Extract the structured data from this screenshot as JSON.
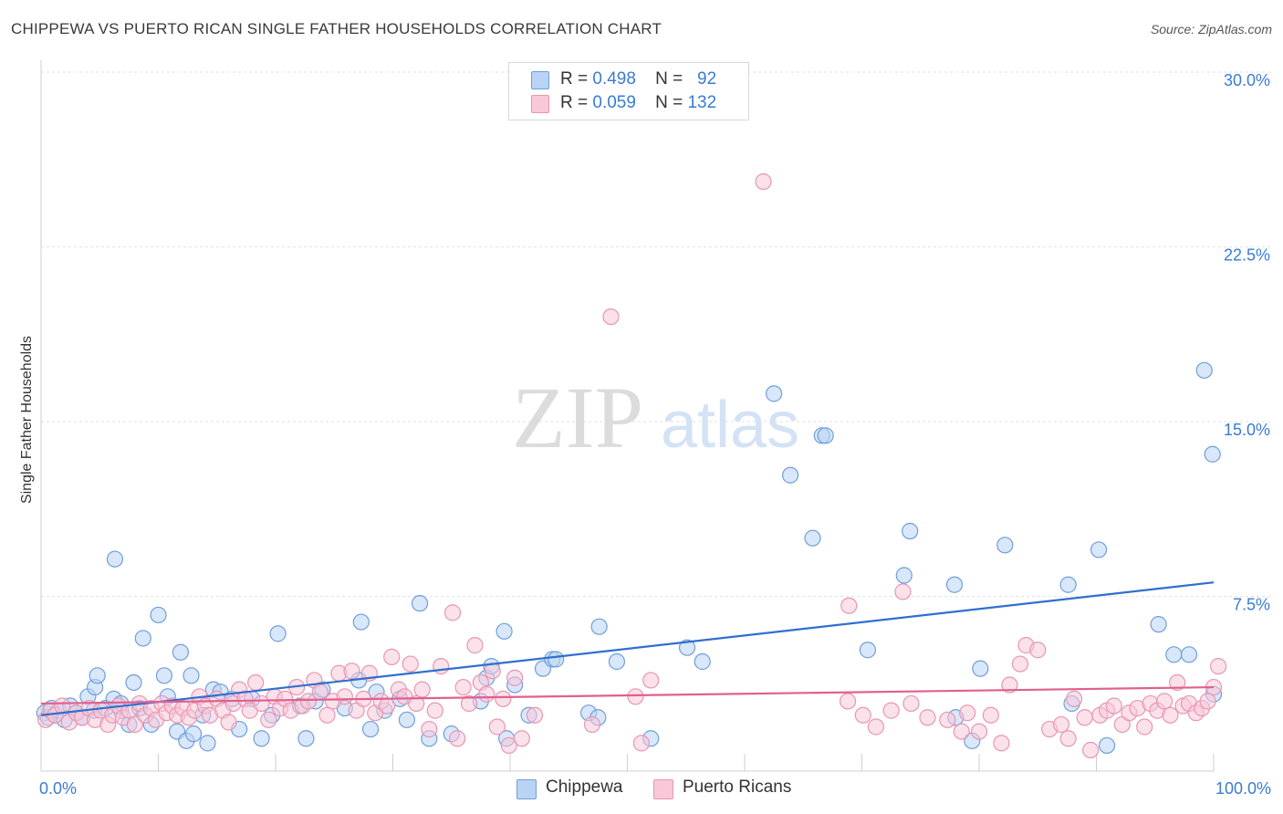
{
  "title": "CHIPPEWA VS PUERTO RICAN SINGLE FATHER HOUSEHOLDS CORRELATION CHART",
  "source": "Source: ZipAtlas.com",
  "watermark": {
    "zip": "ZIP",
    "atlas": "atlas"
  },
  "legend": {
    "rows": [
      {
        "r_label": "R =",
        "r_value": "0.498",
        "n_label": "N =",
        "n_value": "92",
        "fill": "#b9d3f5",
        "stroke": "#6f9fd8"
      },
      {
        "r_label": "R =",
        "r_value": "0.059",
        "n_label": "N =",
        "n_value": "132",
        "fill": "#f8c8d8",
        "stroke": "#e896b2"
      }
    ]
  },
  "chart_data": {
    "type": "scatter",
    "title": "CHIPPEWA VS PUERTO RICAN SINGLE FATHER HOUSEHOLDS CORRELATION CHART",
    "xlabel": "",
    "ylabel": "Single Father Households",
    "xlim": [
      0,
      100
    ],
    "ylim": [
      0,
      31
    ],
    "x_tick_labels": [
      "0.0%",
      "100.0%"
    ],
    "y_ticks": [
      7.5,
      15.0,
      22.5,
      30.0
    ],
    "y_tick_labels": [
      "7.5%",
      "15.0%",
      "22.5%",
      "30.0%"
    ],
    "grid": "horizontal dashed",
    "legend_position": "bottom-center",
    "series": [
      {
        "name": "Chippewa",
        "color": "#6f9fd8",
        "fill": "#b9d3f5",
        "trend_color": "#2f6fcf",
        "trend": {
          "x0": 0,
          "y0": 2.4,
          "x1": 100,
          "y1": 8.1
        },
        "points": [
          [
            0.3,
            2.5
          ],
          [
            0.6,
            2.3
          ],
          [
            0.9,
            2.7
          ],
          [
            1.2,
            2.4
          ],
          [
            1.5,
            2.6
          ],
          [
            2.0,
            2.2
          ],
          [
            2.5,
            2.8
          ],
          [
            3.0,
            2.5
          ],
          [
            3.5,
            2.3
          ],
          [
            4.0,
            3.2
          ],
          [
            4.5,
            2.6
          ],
          [
            5.5,
            2.7
          ],
          [
            6.2,
            3.1
          ],
          [
            6.8,
            2.9
          ],
          [
            4.6,
            3.6
          ],
          [
            4.8,
            4.1
          ],
          [
            6.3,
            9.1
          ],
          [
            6.8,
            2.6
          ],
          [
            7.5,
            2.0
          ],
          [
            7.9,
            3.8
          ],
          [
            8.4,
            2.7
          ],
          [
            8.7,
            5.7
          ],
          [
            9.4,
            2.0
          ],
          [
            10.0,
            6.7
          ],
          [
            10.5,
            4.1
          ],
          [
            10.8,
            3.2
          ],
          [
            11.6,
            1.7
          ],
          [
            11.9,
            5.1
          ],
          [
            12.4,
            1.3
          ],
          [
            12.8,
            4.1
          ],
          [
            13.0,
            1.6
          ],
          [
            13.8,
            2.4
          ],
          [
            14.2,
            1.2
          ],
          [
            14.7,
            3.5
          ],
          [
            15.3,
            3.4
          ],
          [
            16.3,
            3.1
          ],
          [
            16.9,
            1.8
          ],
          [
            18.0,
            3.1
          ],
          [
            18.8,
            1.4
          ],
          [
            19.7,
            2.4
          ],
          [
            20.2,
            5.9
          ],
          [
            22.1,
            2.8
          ],
          [
            22.6,
            1.4
          ],
          [
            23.4,
            3.0
          ],
          [
            24.0,
            3.5
          ],
          [
            25.9,
            2.7
          ],
          [
            27.1,
            3.9
          ],
          [
            27.3,
            6.4
          ],
          [
            28.1,
            1.8
          ],
          [
            28.6,
            3.4
          ],
          [
            29.3,
            2.6
          ],
          [
            30.6,
            3.1
          ],
          [
            31.2,
            2.2
          ],
          [
            32.3,
            7.2
          ],
          [
            33.1,
            1.4
          ],
          [
            35.0,
            1.6
          ],
          [
            37.5,
            3.0
          ],
          [
            38.0,
            4.0
          ],
          [
            38.4,
            4.5
          ],
          [
            39.5,
            6.0
          ],
          [
            39.7,
            1.4
          ],
          [
            40.4,
            3.7
          ],
          [
            41.6,
            2.4
          ],
          [
            42.8,
            4.4
          ],
          [
            43.6,
            4.8
          ],
          [
            43.9,
            4.8
          ],
          [
            46.7,
            2.5
          ],
          [
            47.5,
            2.3
          ],
          [
            47.6,
            6.2
          ],
          [
            49.1,
            4.7
          ],
          [
            52.0,
            1.4
          ],
          [
            55.1,
            5.3
          ],
          [
            56.4,
            4.7
          ],
          [
            62.5,
            16.2
          ],
          [
            63.9,
            12.7
          ],
          [
            66.6,
            14.4
          ],
          [
            66.9,
            14.4
          ],
          [
            65.8,
            10.0
          ],
          [
            70.5,
            5.2
          ],
          [
            73.6,
            8.4
          ],
          [
            74.1,
            10.3
          ],
          [
            77.9,
            8.0
          ],
          [
            78.0,
            2.3
          ],
          [
            79.4,
            1.3
          ],
          [
            80.1,
            4.4
          ],
          [
            82.2,
            9.7
          ],
          [
            87.6,
            8.0
          ],
          [
            87.9,
            2.9
          ],
          [
            90.2,
            9.5
          ],
          [
            90.9,
            1.1
          ],
          [
            95.3,
            6.3
          ],
          [
            96.6,
            5.0
          ],
          [
            97.9,
            5.0
          ],
          [
            99.2,
            17.2
          ],
          [
            99.9,
            13.6
          ],
          [
            100.0,
            3.3
          ]
        ]
      },
      {
        "name": "Puerto Ricans",
        "color": "#e896b2",
        "fill": "#f8c8d8",
        "trend_color": "#e0608e",
        "trend": {
          "x0": 0,
          "y0": 2.9,
          "x1": 100,
          "y1": 3.6
        },
        "points": [
          [
            0.4,
            2.2
          ],
          [
            0.8,
            2.6
          ],
          [
            1.2,
            2.4
          ],
          [
            1.8,
            2.8
          ],
          [
            2.4,
            2.1
          ],
          [
            3.0,
            2.5
          ],
          [
            3.5,
            2.3
          ],
          [
            4.1,
            2.7
          ],
          [
            4.6,
            2.2
          ],
          [
            5.1,
            2.6
          ],
          [
            5.7,
            2.0
          ],
          [
            6.1,
            2.4
          ],
          [
            6.6,
            2.8
          ],
          [
            7.0,
            2.3
          ],
          [
            7.5,
            2.6
          ],
          [
            8.0,
            2.0
          ],
          [
            8.4,
            2.9
          ],
          [
            8.9,
            2.4
          ],
          [
            9.4,
            2.7
          ],
          [
            9.8,
            2.2
          ],
          [
            10.3,
            2.9
          ],
          [
            10.7,
            2.5
          ],
          [
            11.2,
            2.8
          ],
          [
            11.6,
            2.4
          ],
          [
            12.1,
            2.7
          ],
          [
            12.6,
            2.3
          ],
          [
            13.1,
            2.6
          ],
          [
            13.5,
            3.2
          ],
          [
            14.0,
            2.8
          ],
          [
            14.4,
            2.4
          ],
          [
            15.0,
            3.1
          ],
          [
            15.5,
            2.6
          ],
          [
            16.0,
            2.1
          ],
          [
            16.4,
            2.9
          ],
          [
            16.9,
            3.5
          ],
          [
            17.4,
            3.1
          ],
          [
            17.8,
            2.6
          ],
          [
            18.3,
            3.8
          ],
          [
            18.8,
            2.9
          ],
          [
            19.4,
            2.2
          ],
          [
            19.9,
            3.2
          ],
          [
            20.4,
            2.7
          ],
          [
            20.8,
            3.1
          ],
          [
            21.3,
            2.6
          ],
          [
            21.8,
            3.6
          ],
          [
            22.3,
            2.8
          ],
          [
            22.8,
            3.0
          ],
          [
            23.3,
            3.9
          ],
          [
            23.8,
            3.4
          ],
          [
            24.4,
            2.4
          ],
          [
            24.9,
            3.0
          ],
          [
            25.4,
            4.2
          ],
          [
            25.9,
            3.2
          ],
          [
            26.5,
            4.3
          ],
          [
            26.9,
            2.6
          ],
          [
            27.5,
            3.1
          ],
          [
            28.0,
            4.2
          ],
          [
            28.5,
            2.5
          ],
          [
            29.0,
            3.0
          ],
          [
            29.5,
            2.8
          ],
          [
            29.9,
            4.9
          ],
          [
            30.5,
            3.5
          ],
          [
            31.0,
            3.2
          ],
          [
            31.5,
            4.6
          ],
          [
            32.0,
            2.9
          ],
          [
            32.5,
            3.5
          ],
          [
            33.1,
            1.8
          ],
          [
            33.6,
            2.6
          ],
          [
            34.1,
            4.5
          ],
          [
            35.1,
            6.8
          ],
          [
            35.5,
            1.4
          ],
          [
            36.0,
            3.6
          ],
          [
            36.5,
            2.9
          ],
          [
            37.0,
            5.4
          ],
          [
            37.5,
            3.8
          ],
          [
            38.0,
            3.3
          ],
          [
            38.5,
            4.3
          ],
          [
            38.9,
            1.9
          ],
          [
            39.4,
            3.1
          ],
          [
            39.9,
            1.1
          ],
          [
            40.4,
            4.0
          ],
          [
            41.0,
            1.4
          ],
          [
            42.1,
            2.4
          ],
          [
            47.0,
            2.0
          ],
          [
            48.6,
            19.5
          ],
          [
            50.7,
            3.2
          ],
          [
            51.2,
            1.2
          ],
          [
            52.0,
            3.9
          ],
          [
            61.6,
            25.3
          ],
          [
            68.8,
            3.0
          ],
          [
            68.9,
            7.1
          ],
          [
            70.1,
            2.4
          ],
          [
            71.2,
            1.9
          ],
          [
            72.5,
            2.6
          ],
          [
            73.5,
            7.7
          ],
          [
            74.2,
            2.9
          ],
          [
            75.6,
            2.3
          ],
          [
            77.3,
            2.2
          ],
          [
            78.5,
            1.7
          ],
          [
            79.0,
            2.5
          ],
          [
            80.0,
            1.7
          ],
          [
            81.0,
            2.4
          ],
          [
            81.9,
            1.2
          ],
          [
            82.6,
            3.7
          ],
          [
            83.5,
            4.6
          ],
          [
            84.0,
            5.4
          ],
          [
            85.0,
            5.2
          ],
          [
            86.0,
            1.8
          ],
          [
            87.0,
            2.0
          ],
          [
            87.6,
            1.4
          ],
          [
            88.1,
            3.1
          ],
          [
            89.0,
            2.3
          ],
          [
            89.5,
            0.9
          ],
          [
            90.3,
            2.4
          ],
          [
            90.9,
            2.6
          ],
          [
            91.5,
            2.8
          ],
          [
            92.2,
            2.0
          ],
          [
            92.8,
            2.5
          ],
          [
            93.5,
            2.7
          ],
          [
            94.1,
            1.9
          ],
          [
            94.6,
            2.9
          ],
          [
            95.2,
            2.6
          ],
          [
            95.8,
            3.0
          ],
          [
            96.3,
            2.4
          ],
          [
            96.9,
            3.8
          ],
          [
            97.4,
            2.8
          ],
          [
            97.9,
            2.9
          ],
          [
            98.5,
            2.5
          ],
          [
            99.0,
            2.7
          ],
          [
            99.5,
            3.0
          ],
          [
            100.0,
            3.6
          ],
          [
            100.4,
            4.5
          ]
        ]
      }
    ]
  }
}
